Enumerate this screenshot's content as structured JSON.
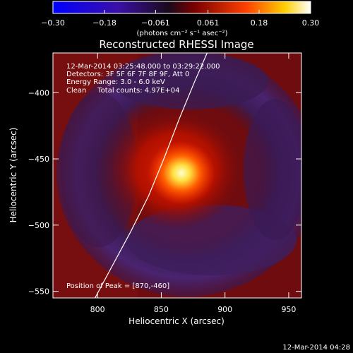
{
  "colorbar": {
    "ticks": [
      "-0.30",
      "-0.18",
      "-0.061",
      "0.061",
      "0.18",
      "0.30"
    ],
    "tick_values": [
      -0.3,
      -0.18,
      -0.061,
      0.061,
      0.18,
      0.3
    ],
    "units_label": "(photons cm⁻² s⁻¹ asec⁻²)",
    "range": [
      -0.3,
      0.3
    ]
  },
  "chart_data": {
    "type": "heatmap",
    "title": "Reconstructed RHESSI Image",
    "xlabel": "Heliocentric X (arcsec)",
    "ylabel": "Heliocentric Y (arcsec)",
    "xlim": [
      765,
      960
    ],
    "ylim": [
      -555,
      -370
    ],
    "x_ticks": [
      800,
      850,
      900,
      950
    ],
    "y_ticks": [
      -550,
      -500,
      -450,
      -400
    ],
    "peak": {
      "x": 870,
      "y": -460
    },
    "limb_line": [
      [
        798,
        -555
      ],
      [
        812,
        -530
      ],
      [
        826,
        -505
      ],
      [
        840,
        -478
      ],
      [
        852,
        -450
      ],
      [
        864,
        -420
      ],
      [
        876,
        -392
      ],
      [
        886,
        -370
      ]
    ],
    "info_lines": [
      "12-Mar-2014 03:25:48.000 to 03:29:22.000",
      "Detectors: 3F 5F 6F 7F 8F 9F, Att 0",
      "Energy Range: 3.0 - 6.0 keV",
      "Clean     Total counts: 4.97E+04"
    ],
    "peak_text": "Position of Peak = [870,-460]"
  },
  "footer": {
    "timestamp": "12-Mar-2014 04:28"
  },
  "colors": {
    "background": "#000000",
    "foreground": "#ffffff"
  }
}
